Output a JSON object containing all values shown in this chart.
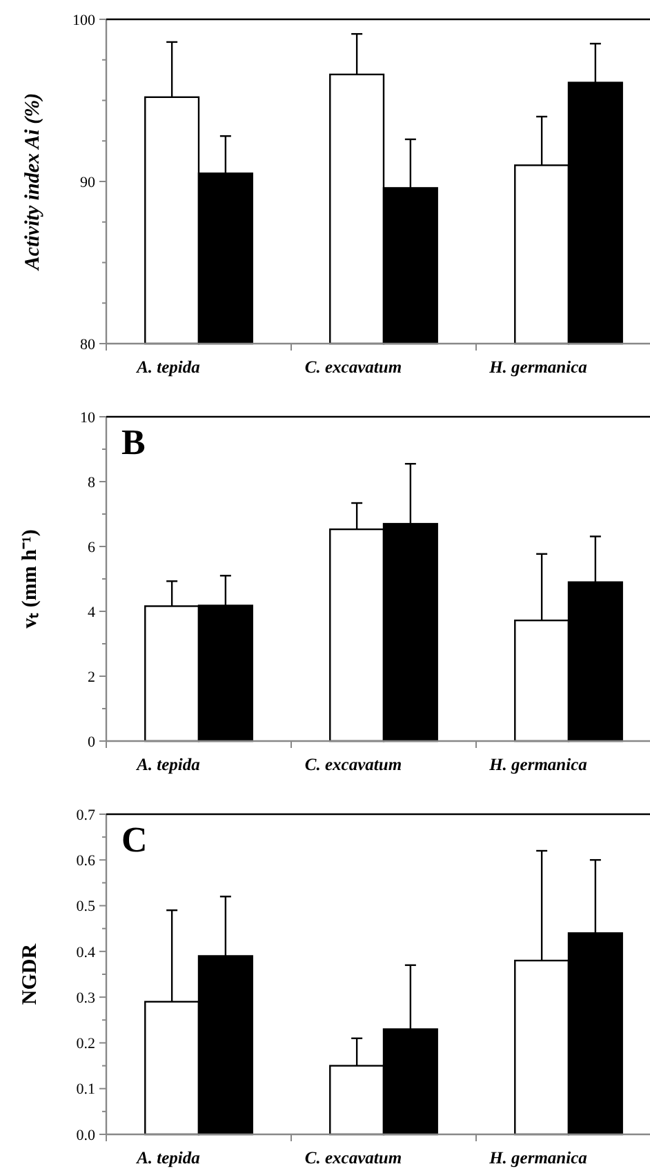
{
  "chart_data": [
    {
      "type": "bar",
      "ylabel": "Activity index Ai (%)",
      "categories": [
        "A. tepida",
        "C. excavatum",
        "H. germanica"
      ],
      "ylim": [
        80,
        100
      ],
      "yticks": [
        80,
        {
          "value": 82.5,
          "label": null
        },
        {
          "value": 85,
          "label": null
        },
        {
          "value": 87.5,
          "label": null
        },
        90,
        {
          "value": 92.5,
          "label": null
        },
        {
          "value": 95,
          "label": null
        },
        {
          "value": 97.5,
          "label": null
        },
        100
      ],
      "series": [
        {
          "color": "#ffffff",
          "values": [
            95.2,
            96.6,
            91.0
          ],
          "errors": [
            3.4,
            2.5,
            3.0
          ]
        },
        {
          "color": "#000000",
          "values": [
            90.5,
            89.6,
            96.1
          ],
          "errors": [
            2.3,
            3.0,
            2.4
          ]
        }
      ]
    },
    {
      "type": "bar",
      "ylabel": "vₜ (mm h⁻¹)",
      "annotations": [
        "B"
      ],
      "categories": [
        "A. tepida",
        "C. excavatum",
        "H. germanica"
      ],
      "ylim": [
        0,
        10
      ],
      "yticks": [
        0,
        {
          "value": 1,
          "label": null
        },
        2,
        {
          "value": 3,
          "label": null
        },
        4,
        {
          "value": 5,
          "label": null
        },
        6,
        {
          "value": 7,
          "label": null
        },
        8,
        {
          "value": 9,
          "label": null
        },
        10
      ],
      "series": [
        {
          "color": "#ffffff",
          "values": [
            4.16,
            6.53,
            3.72
          ],
          "errors": [
            0.77,
            0.81,
            2.05
          ]
        },
        {
          "color": "#000000",
          "values": [
            4.18,
            6.7,
            4.9
          ],
          "errors": [
            0.92,
            1.85,
            1.41
          ]
        }
      ]
    },
    {
      "type": "bar",
      "ylabel": "NGDR",
      "annotations": [
        "C"
      ],
      "categories": [
        "A. tepida",
        "C. excavatum",
        "H. germanica"
      ],
      "ylim": [
        0,
        0.7
      ],
      "yticks": [
        {
          "value": 0,
          "label": "0.0"
        },
        {
          "value": 0.05,
          "label": null
        },
        0.1,
        {
          "value": 0.15,
          "label": null
        },
        0.2,
        {
          "value": 0.25,
          "label": null
        },
        0.3,
        {
          "value": 0.35,
          "label": null
        },
        0.4,
        {
          "value": 0.45,
          "label": null
        },
        0.5,
        {
          "value": 0.55,
          "label": null
        },
        0.6,
        {
          "value": 0.65,
          "label": null
        },
        0.7
      ],
      "series": [
        {
          "color": "#ffffff",
          "values": [
            0.29,
            0.15,
            0.38
          ],
          "errors": [
            0.2,
            0.06,
            0.24
          ]
        },
        {
          "color": "#000000",
          "values": [
            0.39,
            0.23,
            0.44
          ],
          "errors": [
            0.13,
            0.14,
            0.16
          ]
        }
      ]
    }
  ]
}
